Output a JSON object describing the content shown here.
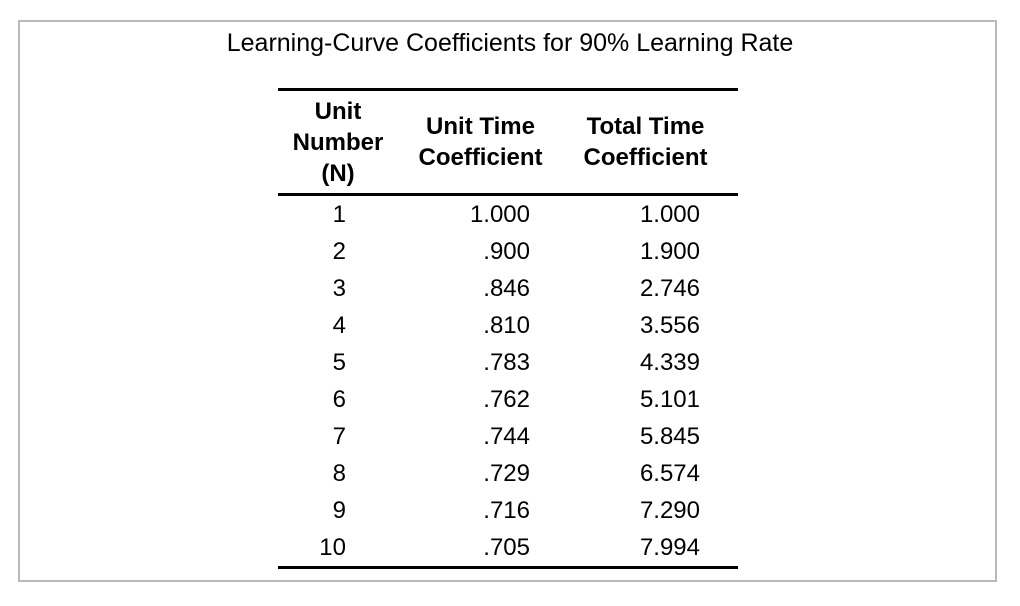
{
  "title": "Learning-Curve Coefficients for 90% Learning Rate",
  "colors": {
    "background": "#ffffff",
    "frame_border": "#b9b9b9",
    "text": "#000000",
    "table_rules": "#000000"
  },
  "table": {
    "headers": [
      {
        "label": "Unit Number (N)",
        "lines": [
          "Unit",
          "Number",
          "(N)"
        ]
      },
      {
        "label": "Unit Time Coefficient",
        "lines": [
          "Unit Time",
          "Coefficient"
        ]
      },
      {
        "label": "Total Time Coefficient",
        "lines": [
          "Total Time",
          "Coefficient"
        ]
      }
    ],
    "rows": [
      {
        "n": "1",
        "unit_time": "1.000",
        "total_time": "1.000"
      },
      {
        "n": "2",
        "unit_time": ".900",
        "total_time": "1.900"
      },
      {
        "n": "3",
        "unit_time": ".846",
        "total_time": "2.746"
      },
      {
        "n": "4",
        "unit_time": ".810",
        "total_time": "3.556"
      },
      {
        "n": "5",
        "unit_time": ".783",
        "total_time": "4.339"
      },
      {
        "n": "6",
        "unit_time": ".762",
        "total_time": "5.101"
      },
      {
        "n": "7",
        "unit_time": ".744",
        "total_time": "5.845"
      },
      {
        "n": "8",
        "unit_time": ".729",
        "total_time": "6.574"
      },
      {
        "n": "9",
        "unit_time": ".716",
        "total_time": "7.290"
      },
      {
        "n": "10",
        "unit_time": ".705",
        "total_time": "7.994"
      }
    ]
  },
  "chart_data": {
    "type": "table",
    "title": "Learning-Curve Coefficients for 90% Learning Rate",
    "columns": [
      "Unit Number (N)",
      "Unit Time Coefficient",
      "Total Time Coefficient"
    ],
    "rows": [
      [
        1,
        1.0,
        1.0
      ],
      [
        2,
        0.9,
        1.9
      ],
      [
        3,
        0.846,
        2.746
      ],
      [
        4,
        0.81,
        3.556
      ],
      [
        5,
        0.783,
        4.339
      ],
      [
        6,
        0.762,
        5.101
      ],
      [
        7,
        0.744,
        5.845
      ],
      [
        8,
        0.729,
        6.574
      ],
      [
        9,
        0.716,
        7.29
      ],
      [
        10,
        0.705,
        7.994
      ]
    ]
  }
}
